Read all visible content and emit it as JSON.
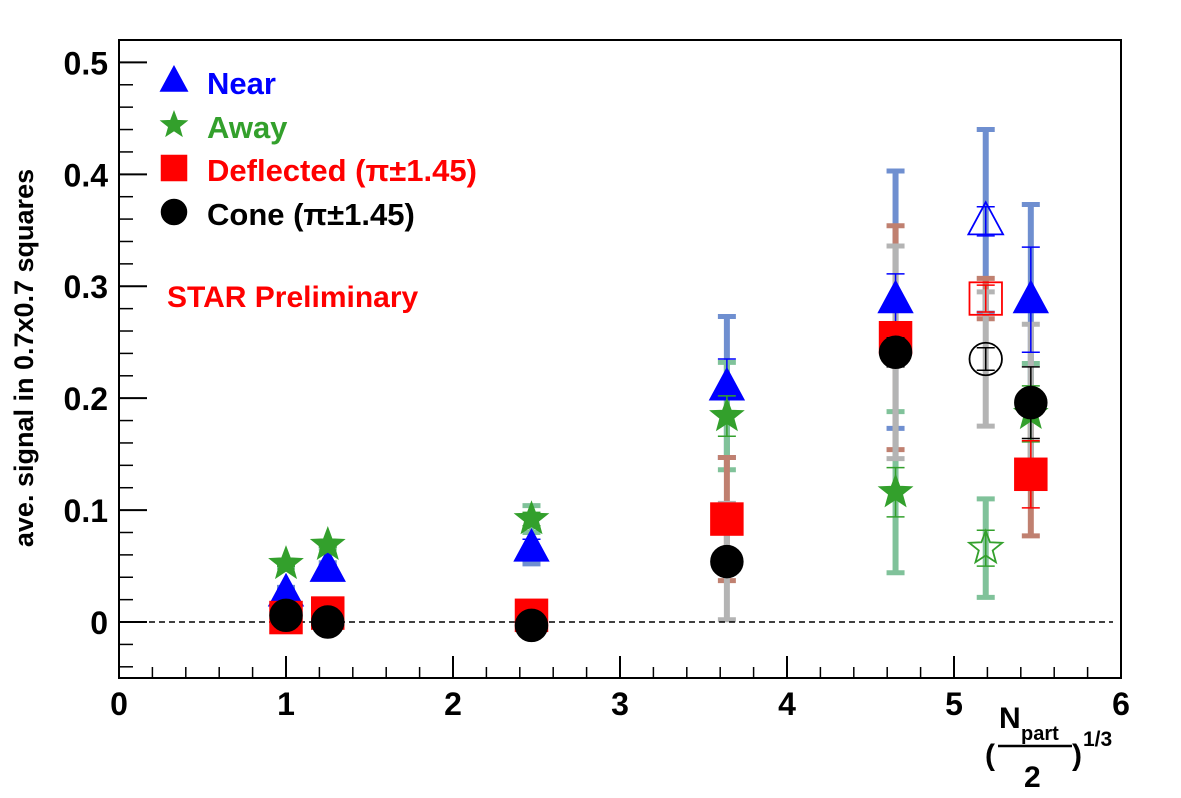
{
  "chart_data": {
    "type": "scatter",
    "title": "",
    "ylabel": "ave. signal in 0.7x0.7 squares",
    "xlabel": {
      "prefix": "(",
      "numerator": "N",
      "subscript": "part",
      "denominator": "2",
      "suffix": ")",
      "exponent": "1/3"
    },
    "xlim": [
      0,
      6
    ],
    "ylim": [
      -0.05,
      0.52
    ],
    "x_ticks": [
      "0",
      "1",
      "2",
      "3",
      "4",
      "5",
      "6"
    ],
    "y_ticks": [
      "0",
      "0.1",
      "0.2",
      "0.3",
      "0.4",
      "0.5"
    ],
    "zero_line": true,
    "grid": false,
    "annotation": {
      "text": "STAR Preliminary",
      "color": "#ff0000"
    },
    "legend": {
      "position": "top-left",
      "entries": [
        {
          "label": "Near",
          "color": "#0000ff",
          "marker": "triangle"
        },
        {
          "label": "Away",
          "color": "#33a02c",
          "marker": "star"
        },
        {
          "label": "Deflected (π±1.45)",
          "color": "#ff0000",
          "marker": "square"
        },
        {
          "label": "Cone (π±1.45)",
          "color": "#000000",
          "marker": "circle"
        }
      ]
    },
    "series": [
      {
        "name": "Near",
        "marker": "triangle",
        "color": "#0000ff",
        "syscolor": "#6f8fd0",
        "points": [
          {
            "x": 1.0,
            "y": 0.026,
            "err": 0.003,
            "sys": 0.005
          },
          {
            "x": 1.25,
            "y": 0.048,
            "err": 0.003,
            "sys": 0.005
          },
          {
            "x": 2.47,
            "y": 0.066,
            "err": 0.008,
            "sys": 0.014
          },
          {
            "x": 3.64,
            "y": 0.21,
            "err": 0.025,
            "sys": 0.063
          },
          {
            "x": 4.65,
            "y": 0.288,
            "err": 0.023,
            "sys": 0.115
          },
          {
            "x": 5.19,
            "y": 0.358,
            "err": 0.013,
            "sys": 0.082,
            "open": true
          },
          {
            "x": 5.46,
            "y": 0.288,
            "err": 0.047,
            "sys": 0.085
          }
        ]
      },
      {
        "name": "Away",
        "marker": "star",
        "color": "#33a02c",
        "syscolor": "#80c29a",
        "points": [
          {
            "x": 1.0,
            "y": 0.052,
            "err": 0.002,
            "sys": 0.003
          },
          {
            "x": 1.25,
            "y": 0.069,
            "err": 0.002,
            "sys": 0.003
          },
          {
            "x": 2.47,
            "y": 0.092,
            "err": 0.006,
            "sys": 0.012
          },
          {
            "x": 3.64,
            "y": 0.184,
            "err": 0.018,
            "sys": 0.048
          },
          {
            "x": 4.65,
            "y": 0.116,
            "err": 0.022,
            "sys": 0.072
          },
          {
            "x": 5.19,
            "y": 0.066,
            "err": 0.016,
            "sys": 0.044,
            "open": true
          },
          {
            "x": 5.46,
            "y": 0.186,
            "err": 0.025,
            "sys": 0.045
          }
        ]
      },
      {
        "name": "Deflected (π±1.45)",
        "marker": "square",
        "color": "#ff0000",
        "syscolor": "#c08070",
        "points": [
          {
            "x": 1.0,
            "y": 0.004,
            "err": 0.002,
            "sys": 0.003
          },
          {
            "x": 1.25,
            "y": 0.008,
            "err": 0.002,
            "sys": 0.003
          },
          {
            "x": 2.47,
            "y": 0.006,
            "err": 0.004,
            "sys": 0.012
          },
          {
            "x": 3.64,
            "y": 0.092,
            "err": 0.01,
            "sys": 0.055
          },
          {
            "x": 4.65,
            "y": 0.254,
            "err": 0.013,
            "sys": 0.1
          },
          {
            "x": 5.19,
            "y": 0.289,
            "err": 0.012,
            "sys": 0.018,
            "open": true
          },
          {
            "x": 5.46,
            "y": 0.132,
            "err": 0.03,
            "sys": 0.055
          }
        ]
      },
      {
        "name": "Cone (π±1.45)",
        "marker": "circle",
        "color": "#000000",
        "syscolor": "#b4b4b4",
        "points": [
          {
            "x": 1.0,
            "y": 0.006,
            "err": 0.002,
            "sys": 0.003
          },
          {
            "x": 1.25,
            "y": 0.0,
            "err": 0.002,
            "sys": 0.003
          },
          {
            "x": 2.47,
            "y": -0.003,
            "err": 0.004,
            "sys": 0.01
          },
          {
            "x": 3.64,
            "y": 0.054,
            "err": 0.008,
            "sys": 0.052
          },
          {
            "x": 4.65,
            "y": 0.241,
            "err": 0.013,
            "sys": 0.095
          },
          {
            "x": 5.19,
            "y": 0.235,
            "err": 0.01,
            "sys": 0.06,
            "open": true
          },
          {
            "x": 5.46,
            "y": 0.196,
            "err": 0.032,
            "sys": 0.07
          }
        ]
      }
    ]
  }
}
